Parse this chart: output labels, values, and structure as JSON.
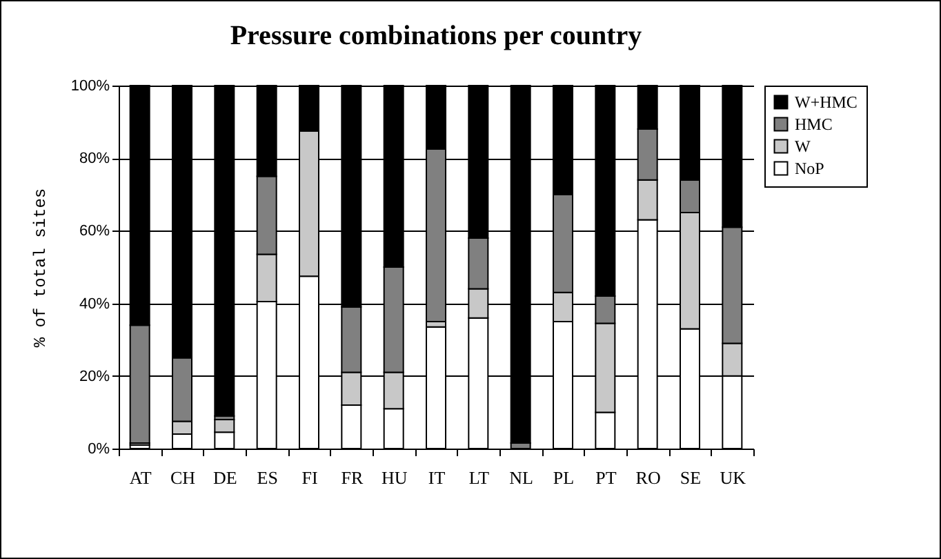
{
  "chart_data": {
    "type": "bar",
    "title": "Pressure combinations per country",
    "ylabel": "% of total sites",
    "categories": [
      "AT",
      "CH",
      "DE",
      "ES",
      "FI",
      "FR",
      "HU",
      "IT",
      "LT",
      "NL",
      "PL",
      "PT",
      "RO",
      "SE",
      "UK"
    ],
    "stacked": true,
    "series": [
      {
        "name": "NoP",
        "color": "#ffffff",
        "values": [
          1,
          4,
          4.5,
          40.5,
          47.5,
          12,
          11,
          33.5,
          36,
          null,
          35,
          10,
          63,
          33,
          20
        ]
      },
      {
        "name": "W",
        "color": "#c8c8c8",
        "values": [
          0.5,
          3.5,
          3.5,
          13,
          40,
          9,
          10,
          1.5,
          8,
          null,
          8,
          24.5,
          11,
          32,
          9
        ]
      },
      {
        "name": "HMC",
        "color": "#808080",
        "values": [
          32.5,
          17.5,
          1,
          21.5,
          null,
          18,
          29,
          47.5,
          14,
          1.5,
          27,
          7.5,
          14,
          9,
          32
        ]
      },
      {
        "name": "W+HMC",
        "color": "#000000",
        "values": [
          66,
          75,
          91,
          25,
          12.5,
          61,
          50,
          17.5,
          42,
          98.5,
          30,
          58,
          12,
          26,
          39
        ]
      }
    ],
    "ylim": [
      0,
      100
    ],
    "yticks": [
      {
        "value": 0,
        "label": "0%"
      },
      {
        "value": 20,
        "label": "20%"
      },
      {
        "value": 40,
        "label": "40%"
      },
      {
        "value": 60,
        "label": "60%"
      },
      {
        "value": 80,
        "label": "80%"
      },
      {
        "value": 100,
        "label": "100%"
      }
    ],
    "grid": "y",
    "legend": "right"
  }
}
